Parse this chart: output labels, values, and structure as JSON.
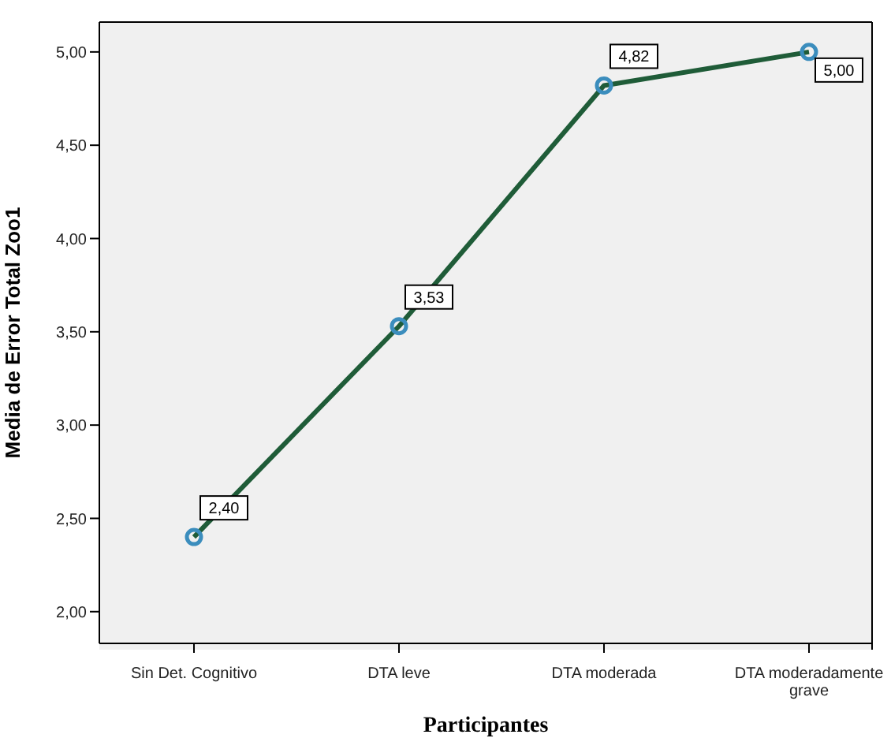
{
  "chart_data": {
    "type": "line",
    "xlabel": "Participantes",
    "ylabel": "Media de Error Total Zoo1",
    "categories": [
      "Sin Det. Cognitivo",
      "DTA leve",
      "DTA moderada",
      "DTA moderadamente grave"
    ],
    "series": [
      {
        "color": "#1f5c38",
        "colors": [
          "#3b8dbd",
          "#3b8dbd",
          "#3b8dbd",
          "#3b8dbd"
        ],
        "values": [
          2.4,
          3.53,
          4.82,
          5.0
        ],
        "value_labels": [
          "2,40",
          "3,53",
          "4,82",
          "5,00"
        ]
      }
    ],
    "ylim": [
      1.83,
      5.16
    ],
    "yticks": [
      {
        "value": 2,
        "label": "2,00"
      },
      {
        "value": 2.5,
        "label": "2,50"
      },
      {
        "value": 3,
        "label": "3,00"
      },
      {
        "value": 3.5,
        "label": "3,50"
      },
      {
        "value": 4,
        "label": "4,00"
      },
      {
        "value": 4.5,
        "label": "4,50"
      },
      {
        "value": 5,
        "label": "5,00"
      }
    ],
    "legend": false,
    "marker": "circle",
    "line_style": "solid"
  }
}
